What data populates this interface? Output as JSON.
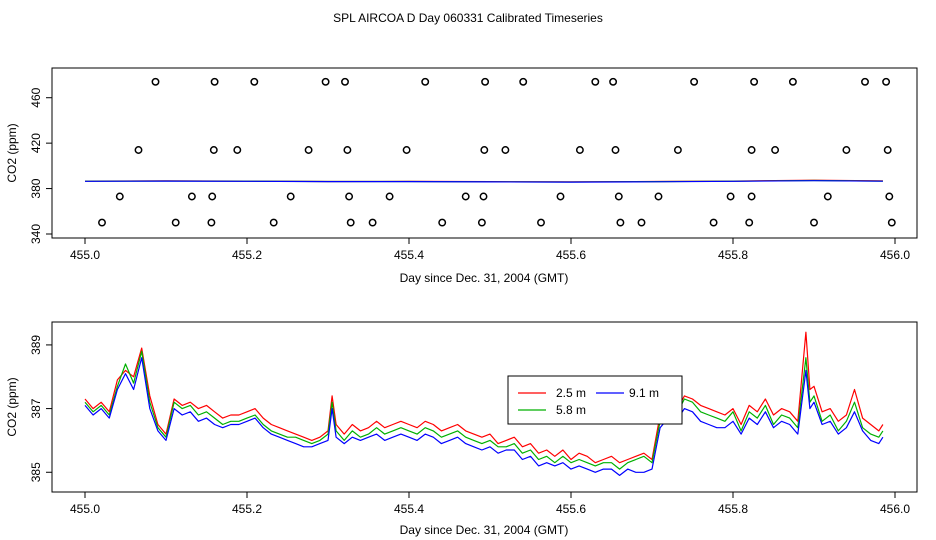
{
  "page_title": "SPL AIRCOA D  Day 060331  Calibrated Timeseries",
  "chart_data": [
    {
      "type": "scatter",
      "title": "",
      "xlabel": "Day since Dec. 31, 2004 (GMT)",
      "ylabel": "CO2 (ppm)",
      "xlim": [
        455.0,
        456.0
      ],
      "ylim": [
        340,
        480
      ],
      "xticks": [
        455.0,
        455.2,
        455.4,
        455.6,
        455.8,
        456.0
      ],
      "xtick_labels": [
        "455.0",
        "455.2",
        "455.4",
        "455.6",
        "455.8",
        "456.0"
      ],
      "yticks": [
        340,
        380,
        420,
        460
      ],
      "ytick_labels": [
        "340",
        "380",
        "420",
        "460"
      ],
      "grid": false,
      "points": {
        "x": [
          455.087,
          455.16,
          455.209,
          455.297,
          455.321,
          455.42,
          455.494,
          455.541,
          455.63,
          455.652,
          455.752,
          455.826,
          455.874,
          455.963,
          455.989,
          455.066,
          455.159,
          455.188,
          455.276,
          455.324,
          455.397,
          455.493,
          455.519,
          455.611,
          455.655,
          455.732,
          455.823,
          455.852,
          455.94,
          455.991,
          455.043,
          455.132,
          455.157,
          455.254,
          455.326,
          455.376,
          455.47,
          455.492,
          455.587,
          455.659,
          455.708,
          455.797,
          455.823,
          455.917,
          455.993,
          455.021,
          455.112,
          455.156,
          455.233,
          455.328,
          455.355,
          455.441,
          455.49,
          455.563,
          455.661,
          455.687,
          455.776,
          455.82,
          455.9,
          455.996
        ],
        "y": [
          474,
          474,
          474,
          474,
          474,
          474,
          474,
          474,
          474,
          474,
          474,
          474,
          474,
          474,
          474,
          414,
          414,
          414,
          414,
          414,
          414,
          414,
          414,
          414,
          414,
          414,
          414,
          414,
          414,
          414,
          373,
          373,
          373,
          373,
          373,
          373,
          373,
          373,
          373,
          373,
          373,
          373,
          373,
          373,
          373,
          350,
          350,
          350,
          350,
          350,
          350,
          350,
          350,
          350,
          350,
          350,
          350,
          350,
          350,
          350
        ]
      },
      "series": [
        {
          "name": "",
          "color": "#ff0000",
          "x": [
            455.0,
            455.1,
            455.2,
            455.3,
            455.4,
            455.5,
            455.6,
            455.7,
            455.8,
            455.9,
            455.985
          ],
          "y": [
            386.6,
            386.8,
            386.6,
            386.2,
            386.3,
            386.1,
            385.9,
            386.2,
            386.6,
            387.4,
            386.8
          ]
        },
        {
          "name": "",
          "color": "#00b000",
          "x": [
            455.0,
            455.1,
            455.2,
            455.3,
            455.4,
            455.5,
            455.6,
            455.7,
            455.8,
            455.9,
            455.985
          ],
          "y": [
            386.5,
            386.7,
            386.5,
            386.2,
            386.2,
            386.0,
            385.8,
            386.1,
            386.5,
            387.1,
            386.6
          ]
        },
        {
          "name": "",
          "color": "#0000ff",
          "x": [
            455.0,
            455.1,
            455.2,
            455.3,
            455.4,
            455.5,
            455.6,
            455.7,
            455.8,
            455.9,
            455.985
          ],
          "y": [
            386.4,
            386.6,
            386.4,
            386.1,
            386.1,
            385.9,
            385.7,
            386.0,
            386.4,
            386.9,
            386.5
          ]
        }
      ]
    },
    {
      "type": "line",
      "title": "",
      "xlabel": "Day since Dec. 31, 2004 (GMT)",
      "ylabel": "CO2 (ppm)",
      "xlim": [
        455.0,
        456.0
      ],
      "ylim": [
        384.6,
        389.5
      ],
      "xticks": [
        455.0,
        455.2,
        455.4,
        455.6,
        455.8,
        456.0
      ],
      "xtick_labels": [
        "455.0",
        "455.2",
        "455.4",
        "455.6",
        "455.8",
        "456.0"
      ],
      "yticks": [
        385,
        387,
        389
      ],
      "ytick_labels": [
        "385",
        "387",
        "389"
      ],
      "grid": false,
      "legend": {
        "placement": "center-right"
      },
      "x": [
        455.0,
        455.01,
        455.02,
        455.03,
        455.04,
        455.05,
        455.06,
        455.07,
        455.08,
        455.09,
        455.1,
        455.11,
        455.12,
        455.13,
        455.14,
        455.15,
        455.16,
        455.17,
        455.18,
        455.19,
        455.2,
        455.21,
        455.22,
        455.23,
        455.24,
        455.25,
        455.26,
        455.27,
        455.28,
        455.29,
        455.3,
        455.305,
        455.31,
        455.32,
        455.33,
        455.34,
        455.35,
        455.36,
        455.37,
        455.38,
        455.39,
        455.4,
        455.41,
        455.42,
        455.43,
        455.44,
        455.45,
        455.46,
        455.47,
        455.48,
        455.49,
        455.5,
        455.51,
        455.52,
        455.53,
        455.54,
        455.55,
        455.56,
        455.57,
        455.58,
        455.59,
        455.6,
        455.61,
        455.62,
        455.63,
        455.64,
        455.65,
        455.66,
        455.67,
        455.68,
        455.69,
        455.7,
        455.71,
        455.72,
        455.73,
        455.74,
        455.75,
        455.76,
        455.77,
        455.78,
        455.79,
        455.8,
        455.81,
        455.82,
        455.83,
        455.84,
        455.85,
        455.86,
        455.87,
        455.88,
        455.89,
        455.895,
        455.9,
        455.91,
        455.92,
        455.93,
        455.94,
        455.95,
        455.96,
        455.97,
        455.98,
        455.985
      ],
      "series": [
        {
          "name": "2.5 m",
          "color": "#ff0000",
          "y": [
            387.3,
            387.0,
            387.2,
            386.9,
            387.9,
            388.2,
            388.0,
            388.9,
            387.4,
            386.5,
            386.2,
            387.3,
            387.1,
            387.2,
            387.0,
            387.1,
            386.9,
            386.7,
            386.8,
            386.8,
            386.9,
            387.0,
            386.7,
            386.5,
            386.4,
            386.3,
            386.2,
            386.1,
            386.0,
            386.1,
            386.3,
            387.4,
            386.5,
            386.2,
            386.5,
            386.3,
            386.4,
            386.6,
            386.4,
            386.5,
            386.6,
            386.5,
            386.4,
            386.6,
            386.5,
            386.3,
            386.4,
            386.5,
            386.3,
            386.2,
            386.1,
            386.2,
            385.9,
            386.0,
            386.1,
            385.8,
            385.9,
            385.6,
            385.7,
            385.5,
            385.7,
            385.4,
            385.6,
            385.5,
            385.3,
            385.4,
            385.5,
            385.3,
            385.4,
            385.5,
            385.6,
            385.4,
            386.8,
            387.1,
            386.9,
            387.4,
            387.3,
            387.1,
            387.0,
            386.9,
            386.8,
            387.0,
            386.5,
            387.1,
            386.9,
            387.3,
            386.8,
            387.0,
            386.9,
            386.6,
            389.4,
            387.6,
            387.7,
            386.9,
            387.0,
            386.6,
            386.8,
            387.6,
            386.7,
            386.5,
            386.3,
            386.5
          ]
        },
        {
          "name": "5.8 m",
          "color": "#00b000",
          "y": [
            387.2,
            386.9,
            387.1,
            386.8,
            387.7,
            388.4,
            387.8,
            388.8,
            387.2,
            386.4,
            386.1,
            387.2,
            387.0,
            387.1,
            386.8,
            386.9,
            386.7,
            386.5,
            386.6,
            386.6,
            386.7,
            386.8,
            386.5,
            386.3,
            386.2,
            386.1,
            386.1,
            386.0,
            385.9,
            386.0,
            386.2,
            387.2,
            386.3,
            386.0,
            386.3,
            386.1,
            386.2,
            386.4,
            386.2,
            386.3,
            386.4,
            386.3,
            386.2,
            386.4,
            386.3,
            386.1,
            386.2,
            386.3,
            386.1,
            386.0,
            385.9,
            386.0,
            385.8,
            385.8,
            385.9,
            385.6,
            385.7,
            385.4,
            385.5,
            385.3,
            385.5,
            385.3,
            385.4,
            385.3,
            385.2,
            385.3,
            385.3,
            385.1,
            385.3,
            385.4,
            385.5,
            385.3,
            386.6,
            386.9,
            386.8,
            387.3,
            387.2,
            386.9,
            386.8,
            386.7,
            386.6,
            386.9,
            386.3,
            386.9,
            386.7,
            387.1,
            386.5,
            386.8,
            386.7,
            386.4,
            388.6,
            387.2,
            387.4,
            386.6,
            386.8,
            386.3,
            386.6,
            387.2,
            386.4,
            386.2,
            386.1,
            386.3
          ]
        },
        {
          "name": "9.1 m",
          "color": "#0000ff",
          "y": [
            387.1,
            386.8,
            387.0,
            386.7,
            387.6,
            388.1,
            387.6,
            388.6,
            387.0,
            386.3,
            386.0,
            387.0,
            386.8,
            386.9,
            386.6,
            386.7,
            386.5,
            386.4,
            386.5,
            386.5,
            386.6,
            386.7,
            386.4,
            386.2,
            386.1,
            386.0,
            385.9,
            385.8,
            385.8,
            385.9,
            386.0,
            387.0,
            386.1,
            385.9,
            386.1,
            386.0,
            386.1,
            386.2,
            386.0,
            386.1,
            386.2,
            386.1,
            386.0,
            386.2,
            386.1,
            385.9,
            386.0,
            386.1,
            385.9,
            385.8,
            385.7,
            385.8,
            385.6,
            385.7,
            385.7,
            385.4,
            385.5,
            385.2,
            385.3,
            385.2,
            385.3,
            385.1,
            385.2,
            385.1,
            385.0,
            385.1,
            385.1,
            384.9,
            385.1,
            385.0,
            385.0,
            385.1,
            386.4,
            386.7,
            386.6,
            387.0,
            386.9,
            386.6,
            386.5,
            386.4,
            386.4,
            386.6,
            386.2,
            386.7,
            386.5,
            386.9,
            386.4,
            386.6,
            386.5,
            386.2,
            388.2,
            387.0,
            387.2,
            386.5,
            386.6,
            386.2,
            386.4,
            386.9,
            386.3,
            386.0,
            385.9,
            386.1
          ]
        }
      ]
    }
  ]
}
